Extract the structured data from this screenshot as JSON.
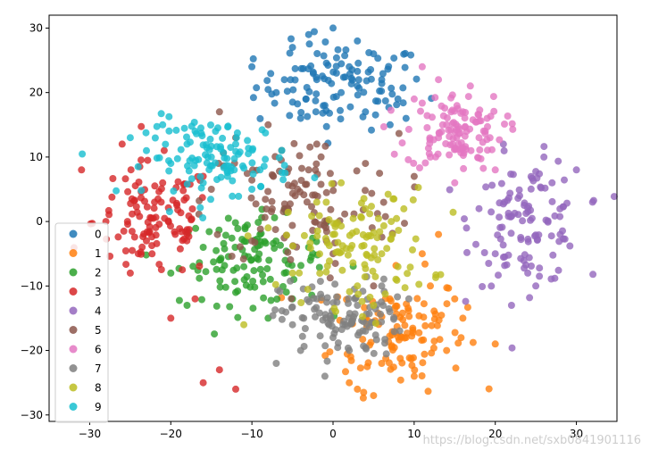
{
  "chart_data": {
    "type": "scatter",
    "title": "",
    "xlabel": "",
    "ylabel": "",
    "xlim": [
      -35,
      35
    ],
    "ylim": [
      -31,
      32
    ],
    "xticks": [
      -30,
      -20,
      -10,
      0,
      10,
      20,
      30
    ],
    "yticks": [
      -30,
      -20,
      -10,
      0,
      10,
      20,
      30
    ],
    "grid": false,
    "legend_position": "lower-left",
    "series": [
      {
        "name": "0",
        "color": "#1f77b4",
        "center": [
          1,
          21
        ],
        "spread": [
          7,
          4.5
        ],
        "points": [
          [
            0,
            30
          ],
          [
            -3,
            29
          ],
          [
            -5,
            27
          ],
          [
            3,
            28
          ],
          [
            5,
            26
          ],
          [
            -10,
            24
          ],
          [
            -7,
            20
          ],
          [
            2,
            24
          ],
          [
            6,
            22
          ],
          [
            -1,
            18
          ],
          [
            -4,
            16
          ],
          [
            4,
            17
          ],
          [
            8,
            19
          ],
          [
            -2,
            22
          ],
          [
            1,
            20
          ],
          [
            3,
            21
          ],
          [
            -6,
            22
          ],
          [
            9,
            16
          ]
        ]
      },
      {
        "name": "1",
        "color": "#ff7f0e",
        "center": [
          8,
          -17
        ],
        "spread": [
          5.5,
          6
        ],
        "points": [
          [
            5,
            -27
          ],
          [
            3,
            -26
          ],
          [
            10,
            -24
          ],
          [
            14,
            -20
          ],
          [
            16,
            -15
          ],
          [
            12,
            -10
          ],
          [
            9,
            -18
          ],
          [
            6,
            -22
          ],
          [
            4,
            -15
          ],
          [
            11,
            -5
          ],
          [
            13,
            -2
          ],
          [
            20,
            -19
          ],
          [
            7,
            -12
          ],
          [
            2,
            -25
          ],
          [
            15,
            -12
          ]
        ]
      },
      {
        "name": "2",
        "color": "#2ca02c",
        "center": [
          -10,
          -6
        ],
        "spread": [
          6,
          4.5
        ],
        "points": [
          [
            -18,
            -13
          ],
          [
            -14,
            -6
          ],
          [
            -9,
            -2
          ],
          [
            -12,
            -11
          ],
          [
            -6,
            -8
          ],
          [
            -16,
            -4
          ],
          [
            -8,
            -15
          ],
          [
            -3,
            -4
          ],
          [
            -11,
            -7
          ],
          [
            -20,
            -8
          ],
          [
            -5,
            -12
          ]
        ]
      },
      {
        "name": "3",
        "color": "#d62728",
        "center": [
          -22,
          0
        ],
        "spread": [
          5,
          6
        ],
        "points": [
          [
            -31,
            8
          ],
          [
            -26,
            12
          ],
          [
            -22,
            3
          ],
          [
            -18,
            -2
          ],
          [
            -24,
            -5
          ],
          [
            -20,
            -15
          ],
          [
            -16,
            -25
          ],
          [
            -12,
            -26
          ],
          [
            -14,
            -23
          ],
          [
            -28,
            0
          ],
          [
            -21,
            6
          ],
          [
            -25,
            -8
          ],
          [
            -17,
            -12
          ],
          [
            -23,
            -3
          ]
        ]
      },
      {
        "name": "4",
        "color": "#9467bd",
        "center": [
          24,
          0
        ],
        "spread": [
          4.5,
          6.5
        ],
        "points": [
          [
            32,
            3
          ],
          [
            30,
            8
          ],
          [
            28,
            -2
          ],
          [
            24,
            -8
          ],
          [
            22,
            -13
          ],
          [
            26,
            10
          ],
          [
            20,
            -5
          ],
          [
            23,
            4
          ],
          [
            27,
            6
          ],
          [
            21,
            12
          ],
          [
            18,
            2
          ],
          [
            25,
            -10
          ]
        ]
      },
      {
        "name": "5",
        "color": "#8c564b",
        "center": [
          -4,
          3
        ],
        "spread": [
          8,
          7
        ],
        "points": [
          [
            -14,
            17
          ],
          [
            -12,
            13
          ],
          [
            -8,
            15
          ],
          [
            -2,
            12
          ],
          [
            4,
            9
          ],
          [
            10,
            7
          ],
          [
            -6,
            2
          ],
          [
            0,
            -5
          ],
          [
            -10,
            -3
          ],
          [
            5,
            -10
          ],
          [
            -3,
            8
          ],
          [
            -15,
            5
          ]
        ]
      },
      {
        "name": "6",
        "color": "#e377c2",
        "center": [
          15,
          14
        ],
        "spread": [
          4,
          4
        ],
        "points": [
          [
            11,
            24
          ],
          [
            13,
            22
          ],
          [
            16,
            17
          ],
          [
            18,
            13
          ],
          [
            12,
            10
          ],
          [
            20,
            8
          ],
          [
            14,
            15
          ],
          [
            17,
            11
          ],
          [
            10,
            19
          ],
          [
            19,
            16
          ],
          [
            15,
            6
          ],
          [
            13,
            13
          ]
        ]
      },
      {
        "name": "7",
        "color": "#7f7f7f",
        "center": [
          1,
          -15
        ],
        "spread": [
          5,
          4
        ],
        "points": [
          [
            -7,
            -22
          ],
          [
            -4,
            -20
          ],
          [
            0,
            -18
          ],
          [
            3,
            -13
          ],
          [
            6,
            -10
          ],
          [
            -2,
            -12
          ],
          [
            2,
            -20
          ],
          [
            -5,
            -16
          ],
          [
            4,
            -17
          ],
          [
            -1,
            -24
          ],
          [
            7,
            -14
          ]
        ]
      },
      {
        "name": "8",
        "color": "#bcbd22",
        "center": [
          3,
          -4
        ],
        "spread": [
          6,
          6
        ],
        "points": [
          [
            -11,
            -16
          ],
          [
            -5,
            -8
          ],
          [
            0,
            -2
          ],
          [
            3,
            -10
          ],
          [
            6,
            -5
          ],
          [
            -2,
            3
          ],
          [
            1,
            6
          ],
          [
            5,
            -13
          ],
          [
            -8,
            -1
          ],
          [
            8,
            -7
          ],
          [
            4,
            2
          ]
        ]
      },
      {
        "name": "9",
        "color": "#17becf",
        "center": [
          -14,
          10
        ],
        "spread": [
          6,
          4
        ],
        "points": [
          [
            -25,
            13
          ],
          [
            -21,
            15
          ],
          [
            -18,
            12
          ],
          [
            -15,
            10
          ],
          [
            -13,
            7
          ],
          [
            -10,
            5
          ],
          [
            -17,
            14
          ],
          [
            -12,
            12
          ],
          [
            -20,
            9
          ],
          [
            -16,
            6
          ],
          [
            -23,
            11
          ],
          [
            -9,
            8
          ]
        ]
      }
    ]
  },
  "watermark": "https://blog.csdn.net/sxb0841901116"
}
